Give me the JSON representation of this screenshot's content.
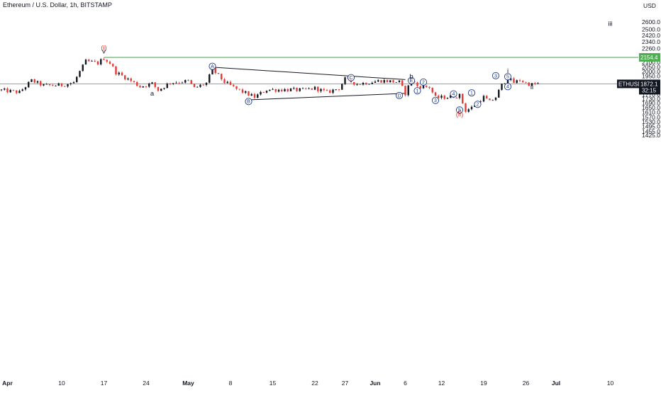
{
  "header": {
    "title": "Ethereum / U.S. Dollar, 1h, BITSTAMP"
  },
  "price_axis": {
    "currency": "USD",
    "ticks": [
      "2600.0",
      "2500.0",
      "2420.0",
      "2340.0",
      "2260.0",
      "2180.0",
      "2100.0",
      "2050.0",
      "2000.0",
      "1950.0",
      "1890.0",
      "1830.0",
      "1770.0",
      "1730.0",
      "1690.0",
      "1650.0",
      "1610.0",
      "1570.0",
      "1530.0",
      "1495.0",
      "1455.0",
      "1425.0"
    ]
  },
  "time_axis": {
    "ticks": [
      "Apr",
      "10",
      "17",
      "24",
      "May",
      "8",
      "15",
      "22",
      "27",
      "Jun",
      "6",
      "12",
      "19",
      "26",
      "Jul",
      "10"
    ]
  },
  "badges": {
    "level_line": "2154.4",
    "last_symbol": "ETHUSD",
    "last_price": "1872.1",
    "countdown": "32:15"
  },
  "colors": {
    "up": "#131722",
    "down": "#e53935",
    "level_line": "#4caf50",
    "wave_circle": "#1e3a8a",
    "trendline": "#131722",
    "last_price_line": "#9e9e9e",
    "badge_dark": "#131722",
    "badge_green": "#4caf50"
  },
  "chart_data": {
    "type": "candlestick",
    "symbol": "ETHUSD",
    "exchange": "BITSTAMP",
    "interval": "1h",
    "y_axis": {
      "scale": "log",
      "range": [
        1410,
        2640
      ],
      "unit": "USD"
    },
    "x_axis": {
      "range": [
        "2022-03-31",
        "2022-07-13"
      ]
    },
    "price_path": [
      {
        "date": "2022-03-31",
        "price": 1810
      },
      {
        "date": "2022-04-03",
        "price": 1790
      },
      {
        "date": "2022-04-05",
        "price": 1905
      },
      {
        "date": "2022-04-07",
        "price": 1855
      },
      {
        "date": "2022-04-10",
        "price": 1860
      },
      {
        "date": "2022-04-12",
        "price": 1885
      },
      {
        "date": "2022-04-14",
        "price": 2110
      },
      {
        "date": "2022-04-16",
        "price": 2090
      },
      {
        "date": "2022-04-17",
        "price": 2145
      },
      {
        "date": "2022-04-18",
        "price": 2090
      },
      {
        "date": "2022-04-19",
        "price": 1990
      },
      {
        "date": "2022-04-21",
        "price": 1920
      },
      {
        "date": "2022-04-23",
        "price": 1845
      },
      {
        "date": "2022-04-25",
        "price": 1875
      },
      {
        "date": "2022-04-26",
        "price": 1810
      },
      {
        "date": "2022-04-28",
        "price": 1885
      },
      {
        "date": "2022-05-01",
        "price": 1900
      },
      {
        "date": "2022-05-02",
        "price": 1830
      },
      {
        "date": "2022-05-04",
        "price": 1880
      },
      {
        "date": "2022-05-05",
        "price": 2020
      },
      {
        "date": "2022-05-07",
        "price": 1890
      },
      {
        "date": "2022-05-09",
        "price": 1820
      },
      {
        "date": "2022-05-12",
        "price": 1745
      },
      {
        "date": "2022-05-14",
        "price": 1815
      },
      {
        "date": "2022-05-18",
        "price": 1815
      },
      {
        "date": "2022-05-20",
        "price": 1810
      },
      {
        "date": "2022-05-22",
        "price": 1830
      },
      {
        "date": "2022-05-24",
        "price": 1790
      },
      {
        "date": "2022-05-26",
        "price": 1830
      },
      {
        "date": "2022-05-27",
        "price": 1920
      },
      {
        "date": "2022-05-29",
        "price": 1870
      },
      {
        "date": "2022-06-02",
        "price": 1905
      },
      {
        "date": "2022-06-05",
        "price": 1890
      },
      {
        "date": "2022-06-06",
        "price": 1780
      },
      {
        "date": "2022-06-07",
        "price": 1910
      },
      {
        "date": "2022-06-08",
        "price": 1850
      },
      {
        "date": "2022-06-10",
        "price": 1840
      },
      {
        "date": "2022-06-11",
        "price": 1740
      },
      {
        "date": "2022-06-13",
        "price": 1745
      },
      {
        "date": "2022-06-15",
        "price": 1760
      },
      {
        "date": "2022-06-16",
        "price": 1625
      },
      {
        "date": "2022-06-17",
        "price": 1650
      },
      {
        "date": "2022-06-18",
        "price": 1700
      },
      {
        "date": "2022-06-19",
        "price": 1745
      },
      {
        "date": "2022-06-20",
        "price": 1700
      },
      {
        "date": "2022-06-21",
        "price": 1745
      },
      {
        "date": "2022-06-22",
        "price": 1860
      },
      {
        "date": "2022-06-23",
        "price": 1930
      },
      {
        "date": "2022-06-24",
        "price": 1885
      },
      {
        "date": "2022-06-25",
        "price": 1910
      },
      {
        "date": "2022-06-26",
        "price": 1880
      },
      {
        "date": "2022-06-27",
        "price": 1865
      },
      {
        "date": "2022-06-28",
        "price": 1872
      }
    ],
    "levels": [
      {
        "price": 2154.4,
        "color": "#4caf50",
        "type": "horizontal"
      },
      {
        "price": 1872.1,
        "color": "#9e9e9e",
        "type": "last_price"
      }
    ],
    "trendlines": [
      {
        "from": {
          "date": "2022-05-05",
          "price": 2045
        },
        "to": {
          "date": "2022-06-06",
          "price": 1915
        }
      },
      {
        "from": {
          "date": "2022-05-11",
          "price": 1720
        },
        "to": {
          "date": "2022-06-06",
          "price": 1780
        }
      }
    ],
    "wave_labels": [
      {
        "text": "(i)",
        "date": "2022-04-17",
        "price": 2240,
        "color": "#e53935"
      },
      {
        "text": "v",
        "date": "2022-04-17",
        "price": 2200,
        "color": "#131722"
      },
      {
        "text": "a",
        "date": "2022-04-25",
        "price": 1760,
        "color": "#131722"
      },
      {
        "text": "A",
        "date": "2022-05-05",
        "price": 2055,
        "circled": true
      },
      {
        "text": "B",
        "date": "2022-05-11",
        "price": 1705,
        "circled": true
      },
      {
        "text": "C",
        "date": "2022-05-28",
        "price": 1935,
        "circled": true
      },
      {
        "text": "D",
        "date": "2022-06-05",
        "price": 1760,
        "circled": true
      },
      {
        "text": "E",
        "date": "2022-06-07",
        "price": 1905,
        "circled": true
      },
      {
        "text": "b",
        "date": "2022-06-07",
        "price": 1925,
        "color": "#131722"
      },
      {
        "text": "2",
        "date": "2022-06-09",
        "price": 1890,
        "circled": true
      },
      {
        "text": "1",
        "date": "2022-06-08",
        "price": 1805,
        "circled": true
      },
      {
        "text": "3",
        "date": "2022-06-11",
        "price": 1715,
        "circled": true
      },
      {
        "text": "4",
        "date": "2022-06-14",
        "price": 1775,
        "circled": true
      },
      {
        "text": "5",
        "date": "2022-06-15",
        "price": 1630,
        "circled": true
      },
      {
        "text": "c",
        "date": "2022-06-15",
        "price": 1595,
        "color": "#131722"
      },
      {
        "text": "(ii)",
        "date": "2022-06-15",
        "price": 1575,
        "color": "#e53935"
      },
      {
        "text": "1",
        "date": "2022-06-17",
        "price": 1785,
        "circled": true
      },
      {
        "text": "2",
        "date": "2022-06-18",
        "price": 1680,
        "circled": true
      },
      {
        "text": "3",
        "date": "2022-06-21",
        "price": 1955,
        "circled": true
      },
      {
        "text": "i",
        "date": "2022-06-23",
        "price": 1985,
        "color": "#131722"
      },
      {
        "text": "5",
        "date": "2022-06-23",
        "price": 1945,
        "circled": true
      },
      {
        "text": "4",
        "date": "2022-06-23",
        "price": 1845,
        "circled": true
      },
      {
        "text": "ii",
        "date": "2022-06-27",
        "price": 1820,
        "color": "#131722"
      },
      {
        "text": "iii",
        "date": "2022-07-10",
        "price": 2545,
        "color": "#131722"
      }
    ]
  }
}
